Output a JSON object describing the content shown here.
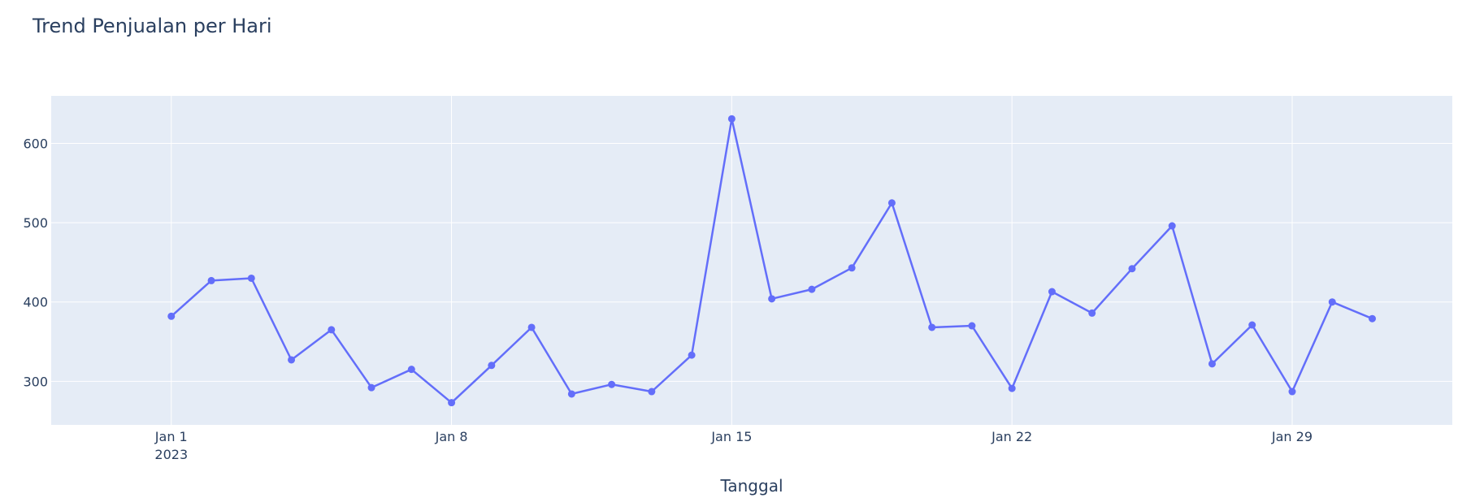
{
  "chart_data": {
    "type": "line",
    "title": "Trend Penjualan per Hari",
    "xlabel": "Tanggal",
    "ylabel": "",
    "x_tick_labels": [
      {
        "date": "2023-01-01",
        "label": "Jan 1",
        "sublabel": "2023"
      },
      {
        "date": "2023-01-08",
        "label": "Jan 8",
        "sublabel": ""
      },
      {
        "date": "2023-01-15",
        "label": "Jan 15",
        "sublabel": ""
      },
      {
        "date": "2023-01-22",
        "label": "Jan 22",
        "sublabel": ""
      },
      {
        "date": "2023-01-29",
        "label": "Jan 29",
        "sublabel": ""
      }
    ],
    "y_ticks": [
      300,
      400,
      500,
      600
    ],
    "xlim": [
      "2022-12-29",
      "2023-02-02"
    ],
    "ylim": [
      245,
      660
    ],
    "grid": true,
    "colors": {
      "line": "#636efa",
      "plot_bg": "#e5ecf6",
      "grid": "#ffffff",
      "text": "#2a3f5f"
    },
    "series": [
      {
        "name": "",
        "x": [
          "2023-01-01",
          "2023-01-02",
          "2023-01-03",
          "2023-01-04",
          "2023-01-05",
          "2023-01-06",
          "2023-01-07",
          "2023-01-08",
          "2023-01-09",
          "2023-01-10",
          "2023-01-11",
          "2023-01-12",
          "2023-01-13",
          "2023-01-14",
          "2023-01-15",
          "2023-01-16",
          "2023-01-17",
          "2023-01-18",
          "2023-01-19",
          "2023-01-20",
          "2023-01-21",
          "2023-01-22",
          "2023-01-23",
          "2023-01-24",
          "2023-01-25",
          "2023-01-26",
          "2023-01-27",
          "2023-01-28",
          "2023-01-29",
          "2023-01-30",
          "2023-01-31"
        ],
        "values": [
          382,
          427,
          430,
          327,
          365,
          292,
          315,
          273,
          320,
          368,
          284,
          296,
          287,
          333,
          631,
          404,
          416,
          443,
          525,
          368,
          370,
          291,
          413,
          386,
          442,
          496,
          322,
          371,
          287,
          400,
          379
        ]
      }
    ]
  }
}
